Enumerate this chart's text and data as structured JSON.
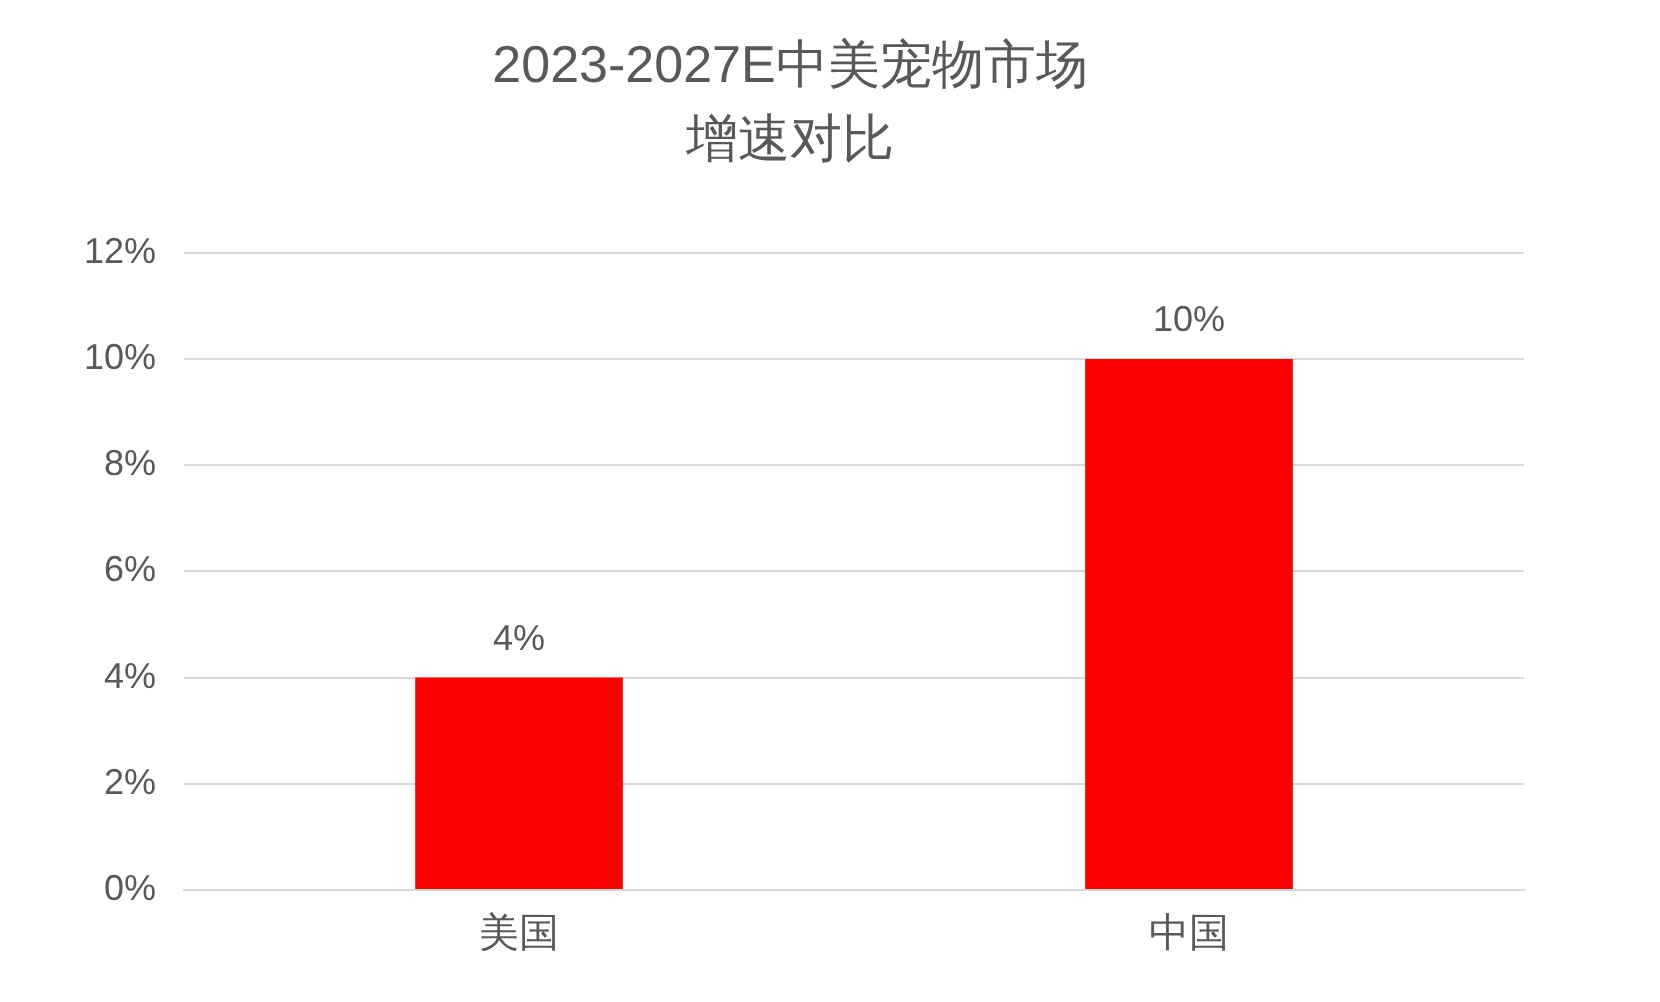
{
  "chart_data": {
    "type": "bar",
    "title": "2023-2027E中美宠物市场",
    "subtitle": "增速对比",
    "categories": [
      "美国",
      "中国"
    ],
    "values": [
      4,
      10
    ],
    "color": "#ff0000",
    "value_labels": [
      "4%",
      "10%"
    ],
    "ylim": [
      0,
      12
    ],
    "yticks": [
      {
        "value": 0,
        "label": "0%"
      },
      {
        "value": 2,
        "label": "2%"
      },
      {
        "value": 4,
        "label": "4%"
      },
      {
        "value": 6,
        "label": "6%"
      },
      {
        "value": 8,
        "label": "8%"
      },
      {
        "value": 10,
        "label": "10%"
      },
      {
        "value": 12,
        "label": "12%"
      }
    ],
    "grid": "y",
    "legend": false
  }
}
